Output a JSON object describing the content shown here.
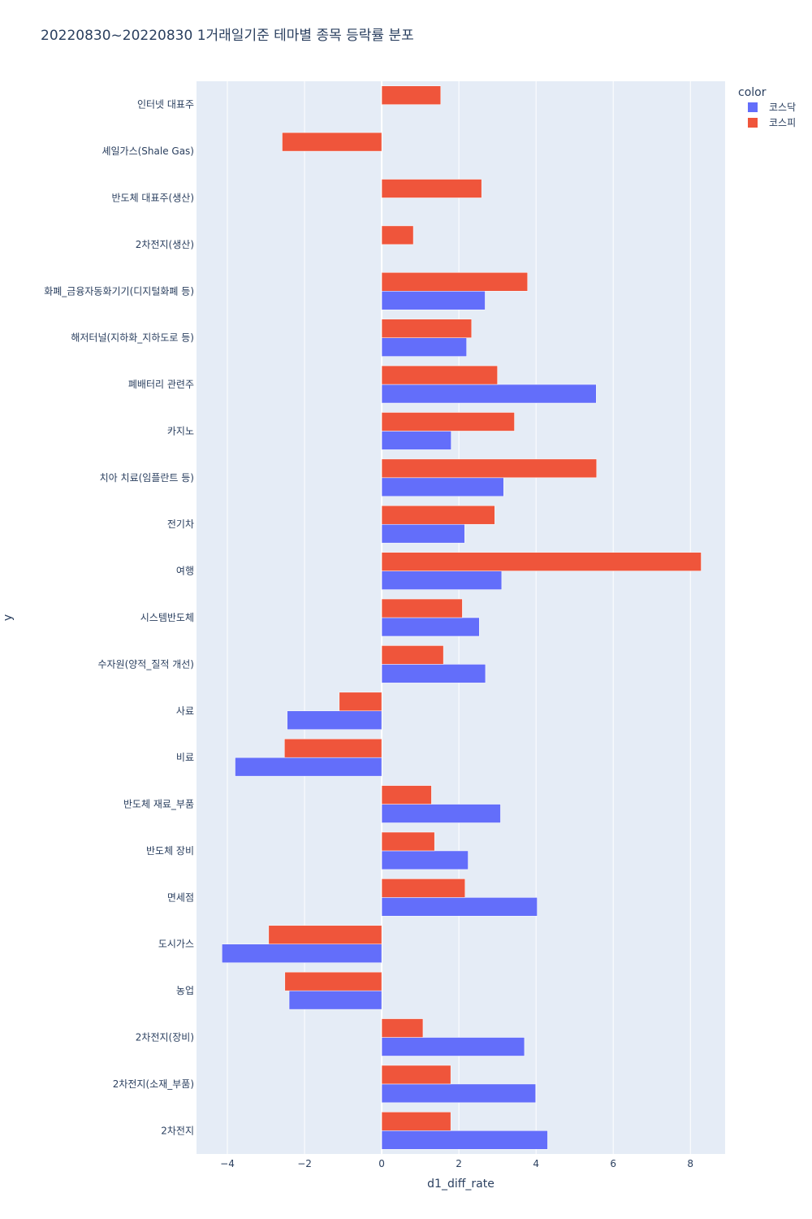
{
  "chart_data": {
    "type": "bar",
    "orientation": "horizontal",
    "barmode": "group",
    "title": "20220830~20220830 1거래일기준 테마별 종목 등락률 분포",
    "xlabel": "d1_diff_rate",
    "ylabel": "y",
    "xlim": [
      -4.8,
      8.9
    ],
    "xticks": [
      -4,
      -2,
      0,
      2,
      4,
      6,
      8
    ],
    "xtick_labels": [
      "−4",
      "−2",
      "0",
      "2",
      "4",
      "6",
      "8"
    ],
    "grid": true,
    "legend": {
      "title": "color",
      "position": "top-right"
    },
    "categories": [
      "인터넷 대표주",
      "셰일가스(Shale Gas)",
      "반도체 대표주(생산)",
      "2차전지(생산)",
      "화폐_금융자동화기기(디지털화폐 등)",
      "해저터널(지하화_지하도로 등)",
      "폐배터리 관련주",
      "카지노",
      "치아 치료(임플란트 등)",
      "전기차",
      "여행",
      "시스템반도체",
      "수자원(양적_질적 개선)",
      "사료",
      "비료",
      "반도체 재료_부품",
      "반도체 장비",
      "면세점",
      "도시가스",
      "농업",
      "2차전지(장비)",
      "2차전지(소재_부품)",
      "2차전지"
    ],
    "series": [
      {
        "name": "코스닥",
        "color": "#636efa",
        "values": [
          null,
          null,
          null,
          null,
          2.68,
          2.2,
          5.56,
          1.8,
          3.16,
          2.15,
          3.11,
          2.53,
          2.69,
          -2.45,
          -3.8,
          3.08,
          2.24,
          4.03,
          -4.14,
          -2.4,
          3.7,
          3.99,
          4.3
        ]
      },
      {
        "name": "코스피",
        "color": "#ef553b",
        "values": [
          1.53,
          -2.58,
          2.59,
          0.82,
          3.78,
          2.33,
          3.0,
          3.44,
          5.57,
          2.93,
          8.28,
          2.09,
          1.6,
          -1.1,
          -2.52,
          1.29,
          1.37,
          2.16,
          -2.93,
          -2.51,
          1.07,
          1.79,
          1.79
        ]
      }
    ]
  }
}
